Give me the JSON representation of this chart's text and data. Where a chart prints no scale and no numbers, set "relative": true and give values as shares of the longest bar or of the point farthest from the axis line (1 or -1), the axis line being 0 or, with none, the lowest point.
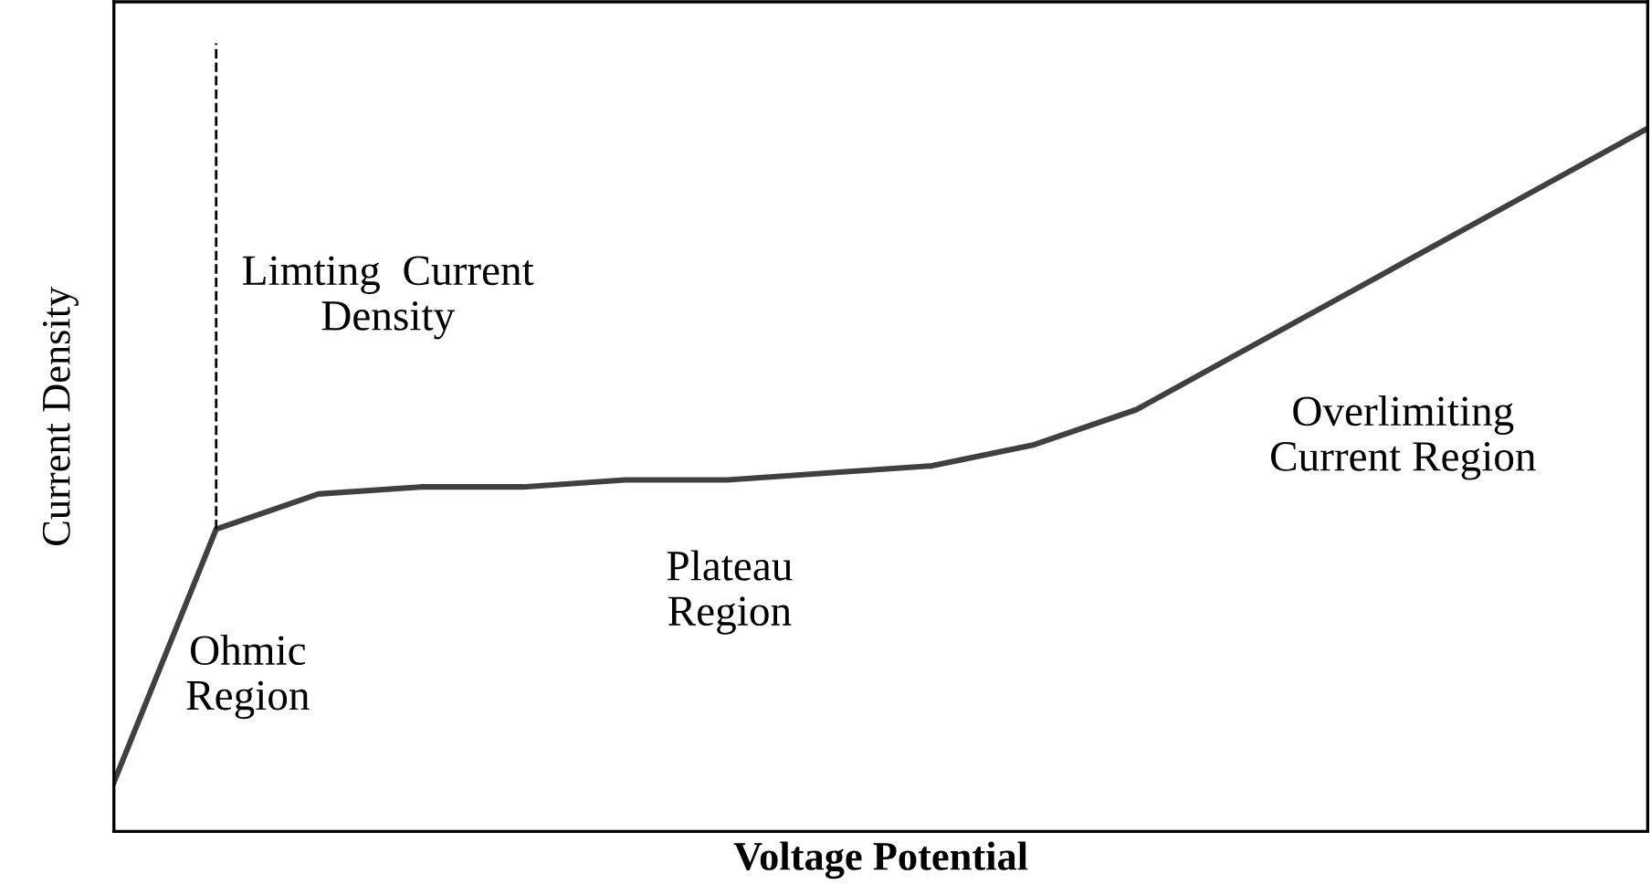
{
  "chart_data": {
    "type": "line",
    "relative": true,
    "xlabel": "Voltage Potential",
    "ylabel": "Current Density",
    "categories": [
      null,
      null,
      null,
      null,
      null,
      null,
      null,
      null,
      null,
      null,
      null,
      null,
      null,
      null,
      null,
      null
    ],
    "series": [
      {
        "color": "#404040",
        "values": [
          0.07,
          0.43,
          0.48,
          0.49,
          0.49,
          0.5,
          0.5,
          0.51,
          0.52,
          0.55,
          0.6,
          0.68,
          0.76,
          0.84,
          0.92,
          1.0
        ]
      }
    ],
    "ref_lines": [
      {
        "axis": "x",
        "value": null,
        "line_style": "dashed",
        "color": "#000000"
      }
    ],
    "annotations": [
      "Limting  Current\nDensity",
      "Ohmic\nRegion",
      "Plateau\nRegion",
      "Overlimiting\nCurrent Region"
    ],
    "grid": false,
    "legend": false,
    "tick_labels": false,
    "marker": "none",
    "line_style": "solid"
  }
}
